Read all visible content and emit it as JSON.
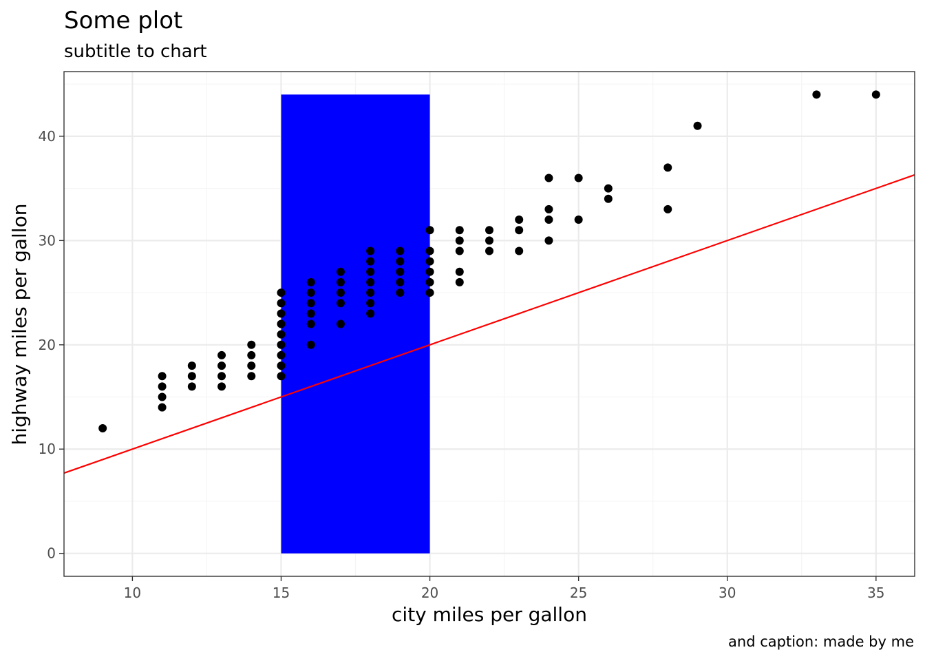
{
  "chart_data": {
    "type": "scatter",
    "title": "Some plot",
    "subtitle": "subtitle to chart",
    "caption": "and caption: made by me",
    "xlabel": "city miles per gallon",
    "ylabel": "highway miles per gallon",
    "xlim": [
      7.7,
      36.3
    ],
    "ylim": [
      -2.2,
      46.2
    ],
    "xticks": [
      10,
      15,
      20,
      25,
      30,
      35
    ],
    "yticks": [
      0,
      10,
      20,
      30,
      40
    ],
    "grid": true,
    "colors": {
      "points": "#000000",
      "rect": "#0000ff",
      "line": "#ff0000",
      "panel_border": "#333333",
      "grid_major": "#ebebeb",
      "grid_minor": "#f5f5f5"
    },
    "annotations": {
      "rect": {
        "x": [
          15,
          20
        ],
        "y": [
          0,
          44
        ]
      },
      "line": {
        "intercept": 0,
        "slope": 1
      }
    },
    "points": [
      [
        9,
        12
      ],
      [
        11,
        14
      ],
      [
        11,
        15
      ],
      [
        11,
        16
      ],
      [
        11,
        17
      ],
      [
        12,
        16
      ],
      [
        12,
        17
      ],
      [
        12,
        18
      ],
      [
        13,
        16
      ],
      [
        13,
        17
      ],
      [
        13,
        18
      ],
      [
        13,
        19
      ],
      [
        14,
        17
      ],
      [
        14,
        18
      ],
      [
        14,
        19
      ],
      [
        14,
        20
      ],
      [
        15,
        17
      ],
      [
        15,
        18
      ],
      [
        15,
        19
      ],
      [
        15,
        20
      ],
      [
        15,
        21
      ],
      [
        15,
        22
      ],
      [
        15,
        23
      ],
      [
        15,
        24
      ],
      [
        15,
        25
      ],
      [
        16,
        20
      ],
      [
        16,
        22
      ],
      [
        16,
        23
      ],
      [
        16,
        24
      ],
      [
        16,
        25
      ],
      [
        16,
        26
      ],
      [
        17,
        22
      ],
      [
        17,
        24
      ],
      [
        17,
        25
      ],
      [
        17,
        26
      ],
      [
        17,
        27
      ],
      [
        18,
        23
      ],
      [
        18,
        24
      ],
      [
        18,
        25
      ],
      [
        18,
        26
      ],
      [
        18,
        27
      ],
      [
        18,
        28
      ],
      [
        18,
        29
      ],
      [
        19,
        25
      ],
      [
        19,
        26
      ],
      [
        19,
        27
      ],
      [
        19,
        28
      ],
      [
        19,
        29
      ],
      [
        20,
        25
      ],
      [
        20,
        26
      ],
      [
        20,
        27
      ],
      [
        20,
        28
      ],
      [
        20,
        29
      ],
      [
        20,
        31
      ],
      [
        21,
        26
      ],
      [
        21,
        27
      ],
      [
        21,
        29
      ],
      [
        21,
        30
      ],
      [
        21,
        31
      ],
      [
        22,
        29
      ],
      [
        22,
        30
      ],
      [
        22,
        31
      ],
      [
        23,
        29
      ],
      [
        23,
        31
      ],
      [
        23,
        32
      ],
      [
        24,
        30
      ],
      [
        24,
        32
      ],
      [
        24,
        33
      ],
      [
        24,
        36
      ],
      [
        25,
        32
      ],
      [
        25,
        36
      ],
      [
        26,
        34
      ],
      [
        26,
        35
      ],
      [
        28,
        33
      ],
      [
        28,
        37
      ],
      [
        29,
        41
      ],
      [
        33,
        44
      ],
      [
        35,
        44
      ]
    ]
  }
}
